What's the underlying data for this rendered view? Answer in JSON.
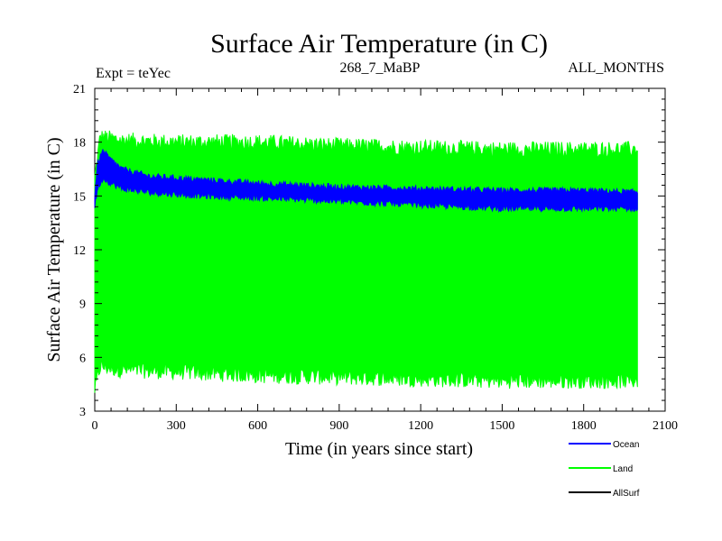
{
  "chart_data": {
    "type": "line",
    "title": "Surface Air Temperature (in C)",
    "subtitle_left": "Expt = teYec",
    "subtitle_center": "268_7_MaBP",
    "subtitle_right": "ALL_MONTHS",
    "xlabel": "Time (in years since start)",
    "ylabel": "Surface Air Temperature (in C)",
    "xlim": [
      0,
      2100
    ],
    "ylim": [
      3,
      21
    ],
    "xticks": [
      0,
      300,
      600,
      900,
      1200,
      1500,
      1800,
      2100
    ],
    "yticks": [
      3,
      6,
      9,
      12,
      15,
      18,
      21
    ],
    "xtick_labels": [
      "0",
      "300",
      "600",
      "900",
      "1200",
      "1500",
      "1800",
      "2100"
    ],
    "ytick_labels": [
      "3",
      "6",
      "9",
      "12",
      "15",
      "18",
      "21"
    ],
    "series": [
      {
        "name": "Land",
        "color": "#00ff00",
        "x_range": [
          0,
          2000
        ],
        "band_top": [
          [
            0,
            16.0
          ],
          [
            20,
            18.3
          ],
          [
            100,
            18.1
          ],
          [
            300,
            18.0
          ],
          [
            600,
            18.0
          ],
          [
            900,
            17.8
          ],
          [
            1200,
            17.7
          ],
          [
            1500,
            17.6
          ],
          [
            1800,
            17.6
          ],
          [
            2000,
            17.6
          ]
        ],
        "band_bottom": [
          [
            0,
            4.2
          ],
          [
            20,
            5.5
          ],
          [
            100,
            5.3
          ],
          [
            300,
            5.2
          ],
          [
            600,
            5.0
          ],
          [
            900,
            4.9
          ],
          [
            1200,
            4.8
          ],
          [
            1500,
            4.7
          ],
          [
            1800,
            4.7
          ],
          [
            2000,
            4.7
          ]
        ]
      },
      {
        "name": "Ocean",
        "color": "#0000ff",
        "x_range": [
          0,
          2000
        ],
        "band_top": [
          [
            0,
            15.0
          ],
          [
            10,
            16.8
          ],
          [
            30,
            17.5
          ],
          [
            60,
            17.0
          ],
          [
            100,
            16.5
          ],
          [
            200,
            16.1
          ],
          [
            400,
            15.9
          ],
          [
            600,
            15.7
          ],
          [
            900,
            15.5
          ],
          [
            1200,
            15.4
          ],
          [
            1500,
            15.3
          ],
          [
            1800,
            15.3
          ],
          [
            2000,
            15.2
          ]
        ],
        "band_bottom": [
          [
            0,
            14.4
          ],
          [
            10,
            15.4
          ],
          [
            30,
            16.0
          ],
          [
            60,
            15.7
          ],
          [
            100,
            15.4
          ],
          [
            200,
            15.2
          ],
          [
            400,
            15.0
          ],
          [
            600,
            14.9
          ],
          [
            900,
            14.7
          ],
          [
            1200,
            14.5
          ],
          [
            1500,
            14.3
          ],
          [
            1800,
            14.3
          ],
          [
            2000,
            14.3
          ]
        ]
      },
      {
        "name": "AllSurf",
        "color": "#000000",
        "x_range": [
          0,
          2000
        ],
        "values": []
      }
    ],
    "legend": [
      {
        "label": "Ocean",
        "color": "#0000ff"
      },
      {
        "label": "Land",
        "color": "#00ff00"
      },
      {
        "label": "AllSurf",
        "color": "#000000"
      }
    ],
    "legend_position": "bottom-right"
  }
}
